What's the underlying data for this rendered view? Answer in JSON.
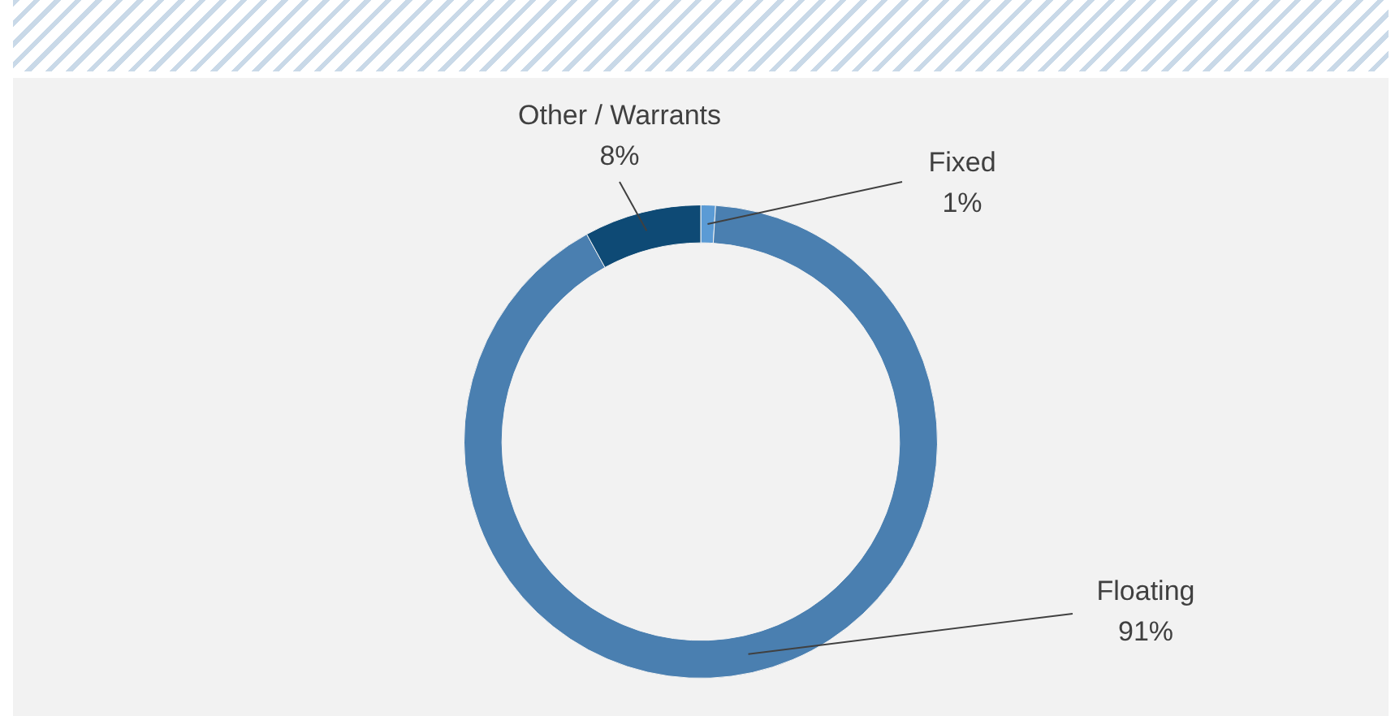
{
  "chart_data": {
    "type": "donut",
    "categories": [
      "Fixed",
      "Floating",
      "Other / Warrants"
    ],
    "values": [
      1,
      91,
      8
    ],
    "value_labels": [
      "1%",
      "91%",
      "8%"
    ],
    "colors": [
      "#5b9bd5",
      "#4a7fb0",
      "#0e4a75"
    ],
    "legend": false
  }
}
